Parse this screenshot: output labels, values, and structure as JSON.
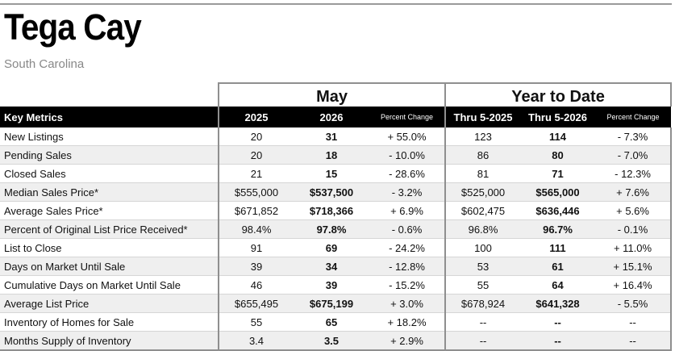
{
  "title": "Tega Cay",
  "subtitle": "South Carolina",
  "groups": {
    "month": "May",
    "ytd": "Year to Date"
  },
  "headers": {
    "metric": "Key Metrics",
    "y1": "2025",
    "y2": "2026",
    "pct1": "Percent Change",
    "ytd1": "Thru 5-2025",
    "ytd2": "Thru 5-2026",
    "pct2": "Percent Change"
  },
  "rows": [
    {
      "metric": "New Listings",
      "y1": "20",
      "y2": "31",
      "pct1": "+ 55.0%",
      "ytd1": "123",
      "ytd2": "114",
      "pct2": "- 7.3%"
    },
    {
      "metric": "Pending Sales",
      "y1": "20",
      "y2": "18",
      "pct1": "- 10.0%",
      "ytd1": "86",
      "ytd2": "80",
      "pct2": "- 7.0%"
    },
    {
      "metric": "Closed Sales",
      "y1": "21",
      "y2": "15",
      "pct1": "- 28.6%",
      "ytd1": "81",
      "ytd2": "71",
      "pct2": "- 12.3%"
    },
    {
      "metric": "Median Sales Price*",
      "y1": "$555,000",
      "y2": "$537,500",
      "pct1": "- 3.2%",
      "ytd1": "$525,000",
      "ytd2": "$565,000",
      "pct2": "+ 7.6%"
    },
    {
      "metric": "Average Sales Price*",
      "y1": "$671,852",
      "y2": "$718,366",
      "pct1": "+ 6.9%",
      "ytd1": "$602,475",
      "ytd2": "$636,446",
      "pct2": "+ 5.6%"
    },
    {
      "metric": "Percent of Original List Price Received*",
      "y1": "98.4%",
      "y2": "97.8%",
      "pct1": "- 0.6%",
      "ytd1": "96.8%",
      "ytd2": "96.7%",
      "pct2": "- 0.1%"
    },
    {
      "metric": "List to Close",
      "y1": "91",
      "y2": "69",
      "pct1": "- 24.2%",
      "ytd1": "100",
      "ytd2": "111",
      "pct2": "+ 11.0%"
    },
    {
      "metric": "Days on Market Until Sale",
      "y1": "39",
      "y2": "34",
      "pct1": "- 12.8%",
      "ytd1": "53",
      "ytd2": "61",
      "pct2": "+ 15.1%"
    },
    {
      "metric": "Cumulative Days on Market Until Sale",
      "y1": "46",
      "y2": "39",
      "pct1": "- 15.2%",
      "ytd1": "55",
      "ytd2": "64",
      "pct2": "+ 16.4%"
    },
    {
      "metric": "Average List Price",
      "y1": "$655,495",
      "y2": "$675,199",
      "pct1": "+ 3.0%",
      "ytd1": "$678,924",
      "ytd2": "$641,328",
      "pct2": "- 5.5%"
    },
    {
      "metric": "Inventory of Homes for Sale",
      "y1": "55",
      "y2": "65",
      "pct1": "+ 18.2%",
      "ytd1": "--",
      "ytd2": "--",
      "pct2": "--"
    },
    {
      "metric": "Months Supply of Inventory",
      "y1": "3.4",
      "y2": "3.5",
      "pct1": "+ 2.9%",
      "ytd1": "--",
      "ytd2": "--",
      "pct2": "--"
    }
  ]
}
